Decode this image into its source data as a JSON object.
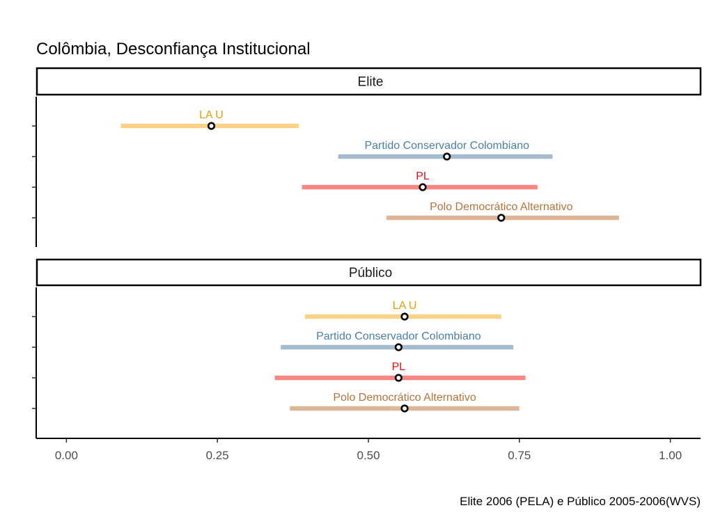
{
  "chart_data": {
    "type": "interval",
    "title": "Colômbia, Desconfiança Institucional",
    "caption": "Elite 2006 (PELA) e Público 2005-2006(WVS)",
    "xlim": [
      -0.05,
      1.05
    ],
    "x_ticks": [
      0,
      0.25,
      0.5,
      0.75,
      1
    ],
    "x_tick_labels": [
      "0.00",
      "0.25",
      "0.50",
      "0.75",
      "1.00"
    ],
    "grid": false,
    "series_colors": {
      "LA U": "#E69F00",
      "Partido Conservador Colombiano": "#4B7FAA",
      "PL": "#E8110F",
      "Polo Democrático Alternativo": "#B8733A"
    },
    "bar_colors": {
      "LA U": "#FBD386",
      "Partido Conservador Colombiano": "#A4BCCE",
      "PL": "#F98683",
      "Polo Democrático Alternativo": "#DDB798"
    },
    "panels": [
      {
        "strip": "Elite",
        "items": [
          {
            "party": "LA U",
            "estimate": 0.24,
            "low": 0.09,
            "high": 0.385
          },
          {
            "party": "Partido Conservador Colombiano",
            "estimate": 0.63,
            "low": 0.45,
            "high": 0.805
          },
          {
            "party": "PL",
            "estimate": 0.59,
            "low": 0.39,
            "high": 0.78
          },
          {
            "party": "Polo Democrático Alternativo",
            "estimate": 0.72,
            "low": 0.53,
            "high": 0.915
          }
        ]
      },
      {
        "strip": "Público",
        "items": [
          {
            "party": "LA U",
            "estimate": 0.56,
            "low": 0.395,
            "high": 0.72
          },
          {
            "party": "Partido Conservador Colombiano",
            "estimate": 0.55,
            "low": 0.355,
            "high": 0.74
          },
          {
            "party": "PL",
            "estimate": 0.55,
            "low": 0.345,
            "high": 0.76
          },
          {
            "party": "Polo Democrático Alternativo",
            "estimate": 0.56,
            "low": 0.37,
            "high": 0.75
          }
        ]
      }
    ]
  }
}
